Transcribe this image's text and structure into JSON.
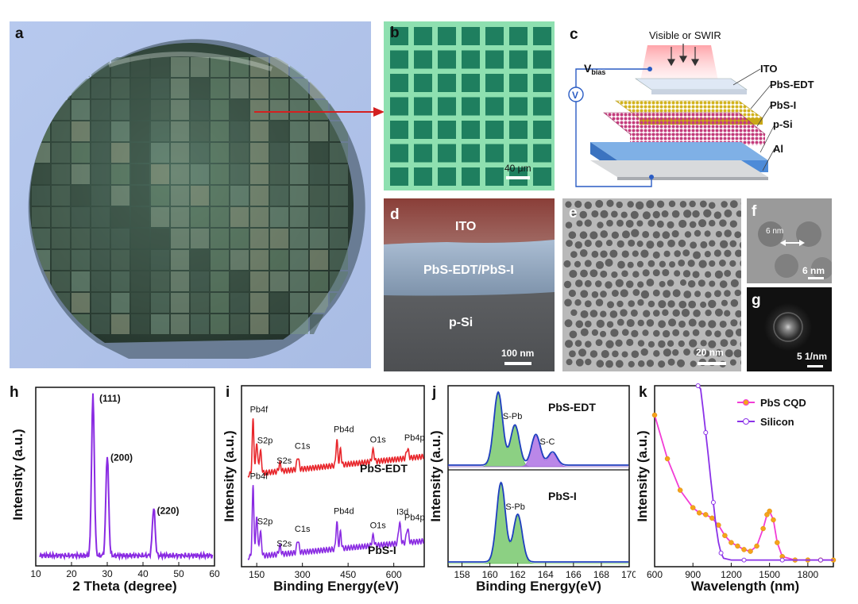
{
  "panels": {
    "a": {
      "letter": "a"
    },
    "b": {
      "letter": "b",
      "scale_bar": "40 μm"
    },
    "c": {
      "letter": "c",
      "light": "Visible or SWIR",
      "vbias": "V",
      "vbias_sub": "bias",
      "meter": "V",
      "layers": [
        "ITO",
        "PbS-EDT",
        "PbS-I",
        "p-Si",
        "Al"
      ]
    },
    "d": {
      "letter": "d",
      "layers": [
        "ITO",
        "PbS-EDT/PbS-I",
        "p-Si"
      ],
      "scale_bar": "100 nm"
    },
    "e": {
      "letter": "e",
      "scale_bar": "20 nm"
    },
    "f": {
      "letter": "f",
      "size_label": "6 nm",
      "scale_bar": "6 nm"
    },
    "g": {
      "letter": "g",
      "scale_bar": "5 1/nm"
    },
    "h": {
      "letter": "h"
    },
    "i": {
      "letter": "i"
    },
    "j": {
      "letter": "j"
    },
    "k": {
      "letter": "k"
    }
  },
  "colors": {
    "xrd": "#8a2be2",
    "edt": "#e8262b",
    "pbsi": "#8a2be2",
    "envelope": "#1f3fbf",
    "spb": "#66c05a",
    "sc": "#a35fe0",
    "pbs_cqd": "#f23cd6",
    "silicon": "#8b32e8",
    "marker": "#f5a31a"
  },
  "chart_data": [
    {
      "id": "h",
      "type": "line",
      "xlabel": "2 Theta (degree)",
      "ylabel": "Intensity (a.u.)",
      "xlim": [
        10,
        60
      ],
      "xticks": [
        10,
        20,
        30,
        40,
        50,
        60
      ],
      "peaks": [
        {
          "x": 26,
          "height": 1.0,
          "label": "(111)"
        },
        {
          "x": 30,
          "height": 0.63,
          "label": "(200)"
        },
        {
          "x": 43,
          "height": 0.3,
          "label": "(220)"
        }
      ]
    },
    {
      "id": "i",
      "type": "line",
      "xlabel": "Binding Energy(eV)",
      "ylabel": "Intensity (a.u.)",
      "xlim": [
        100,
        700
      ],
      "xticks": [
        150,
        300,
        450,
        600
      ],
      "series": [
        {
          "name": "PbS-EDT",
          "peaks": [
            {
              "x": 138,
              "label": "Pb4f"
            },
            {
              "x": 162,
              "label": "S2p"
            },
            {
              "x": 226,
              "label": "S2s"
            },
            {
              "x": 285,
              "label": "C1s"
            },
            {
              "x": 413,
              "label": "Pb4d"
            },
            {
              "x": 532,
              "label": "O1s"
            },
            {
              "x": 645,
              "label": "Pb4p"
            }
          ]
        },
        {
          "name": "PbS-I",
          "peaks": [
            {
              "x": 138,
              "label": "Pb4f"
            },
            {
              "x": 162,
              "label": "S2p"
            },
            {
              "x": 226,
              "label": "S2s"
            },
            {
              "x": 285,
              "label": "C1s"
            },
            {
              "x": 413,
              "label": "Pb4d"
            },
            {
              "x": 532,
              "label": "O1s"
            },
            {
              "x": 619,
              "label": "I3d"
            },
            {
              "x": 645,
              "label": "Pb4p"
            }
          ]
        }
      ]
    },
    {
      "id": "j",
      "type": "area",
      "xlabel": "Binding Energy(eV)",
      "ylabel": "Intensity (a.u.)",
      "xlim": [
        157,
        170
      ],
      "xticks": [
        158,
        160,
        162,
        164,
        166,
        168,
        170
      ],
      "series": [
        {
          "name": "PbS-EDT",
          "components": [
            {
              "label": "S-Pb",
              "peaks": [
                {
                  "x": 160.6,
                  "a": 1.0
                },
                {
                  "x": 161.8,
                  "a": 0.55
                }
              ]
            },
            {
              "label": "S-C",
              "peaks": [
                {
                  "x": 163.3,
                  "a": 0.42
                },
                {
                  "x": 164.5,
                  "a": 0.18
                }
              ]
            }
          ]
        },
        {
          "name": "PbS-I",
          "components": [
            {
              "label": "S-Pb",
              "peaks": [
                {
                  "x": 160.8,
                  "a": 1.0
                },
                {
                  "x": 162.0,
                  "a": 0.6
                }
              ]
            }
          ]
        }
      ]
    },
    {
      "id": "k",
      "type": "line",
      "xlabel": "Wavelength (nm)",
      "ylabel": "Intensity (a.u.)",
      "xlim": [
        600,
        2000
      ],
      "xticks": [
        600,
        900,
        1200,
        1500,
        1800
      ],
      "legend": "top-right",
      "series": [
        {
          "name": "PbS CQD",
          "x": [
            600,
            700,
            800,
            900,
            950,
            1000,
            1050,
            1100,
            1150,
            1200,
            1250,
            1300,
            1350,
            1400,
            1450,
            1480,
            1500,
            1530,
            1560,
            1600,
            1700,
            1800,
            1900,
            2000
          ],
          "y": [
            0.85,
            0.6,
            0.42,
            0.32,
            0.29,
            0.28,
            0.26,
            0.22,
            0.16,
            0.12,
            0.1,
            0.08,
            0.07,
            0.1,
            0.2,
            0.28,
            0.3,
            0.25,
            0.12,
            0.04,
            0.02,
            0.02,
            0.02,
            0.02
          ]
        },
        {
          "name": "Silicon",
          "x": [
            940,
            960,
            980,
            1000,
            1020,
            1040,
            1060,
            1080,
            1100,
            1120,
            1140,
            1200,
            1300,
            1400,
            1500,
            1600,
            1700,
            1800,
            1900,
            2000
          ],
          "y": [
            1.2,
            1.0,
            0.88,
            0.75,
            0.62,
            0.48,
            0.35,
            0.22,
            0.12,
            0.06,
            0.03,
            0.02,
            0.02,
            0.02,
            0.02,
            0.02,
            0.02,
            0.02,
            0.02,
            0.02
          ]
        }
      ]
    }
  ]
}
